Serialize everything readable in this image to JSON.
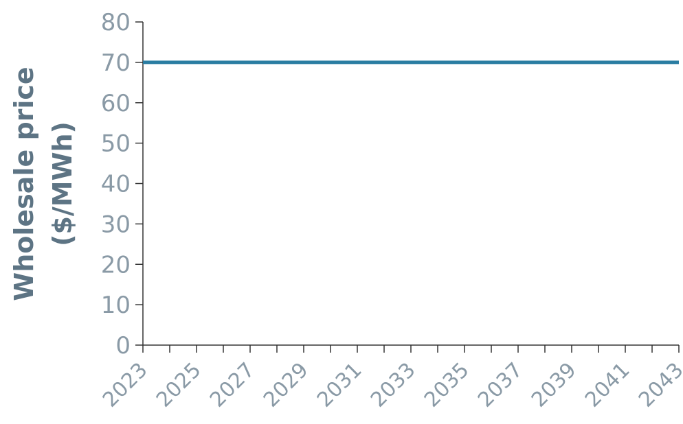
{
  "chart_data": {
    "type": "line",
    "title": "",
    "xlabel": "",
    "ylabel_lines": [
      "Wholesale price",
      "($/MWh)"
    ],
    "x_tick_labels": [
      "2023",
      "2025",
      "2027",
      "2029",
      "2031",
      "2033",
      "2035",
      "2037",
      "2039",
      "2041",
      "2043"
    ],
    "y_tick_labels": [
      "0",
      "10",
      "20",
      "30",
      "40",
      "50",
      "60",
      "70",
      "80"
    ],
    "ylim": [
      0,
      80
    ],
    "xlim": [
      2023,
      2043
    ],
    "grid": false,
    "legend": "none",
    "series": [
      {
        "color": "#2a7da2",
        "x": [
          2023,
          2024,
          2025,
          2026,
          2027,
          2028,
          2029,
          2030,
          2031,
          2032,
          2033,
          2034,
          2035,
          2036,
          2037,
          2038,
          2039,
          2040,
          2041,
          2042,
          2043
        ],
        "values": [
          70,
          70,
          70,
          70,
          70,
          70,
          70,
          70,
          70,
          70,
          70,
          70,
          70,
          70,
          70,
          70,
          70,
          70,
          70,
          70,
          70
        ]
      }
    ]
  }
}
